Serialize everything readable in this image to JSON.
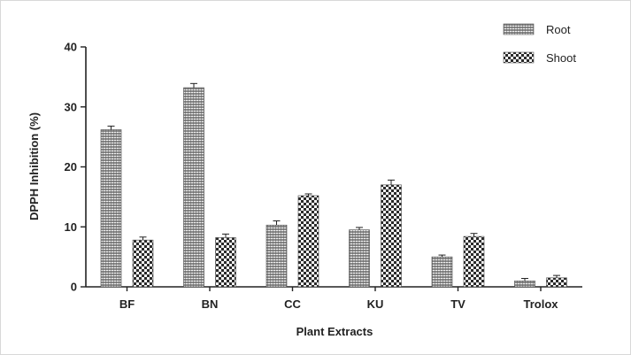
{
  "chart_data": {
    "type": "bar",
    "title": "",
    "xlabel": "Plant Extracts",
    "ylabel": "DPPH Inhibition (%)",
    "ylim": [
      0,
      40
    ],
    "yticks": [
      0,
      10,
      20,
      30,
      40
    ],
    "categories": [
      "BF",
      "BN",
      "CC",
      "KU",
      "TV",
      "Trolox"
    ],
    "series": [
      {
        "name": "Root",
        "values": [
          26.2,
          33.2,
          10.3,
          9.5,
          5.0,
          1.0
        ],
        "errors": [
          0.6,
          0.7,
          0.7,
          0.4,
          0.3,
          0.4
        ]
      },
      {
        "name": "Shoot",
        "values": [
          7.8,
          8.2,
          15.2,
          17.0,
          8.4,
          1.5
        ],
        "errors": [
          0.5,
          0.6,
          0.3,
          0.8,
          0.5,
          0.4
        ]
      }
    ],
    "legend_position": "top-right",
    "grid": false,
    "colors": {
      "axis": "#222222",
      "root_fill": "#8a8a8a",
      "root_line": "#f0f0f0",
      "shoot_dark": "#2a2a2a",
      "shoot_light": "#f4f4f4"
    }
  }
}
